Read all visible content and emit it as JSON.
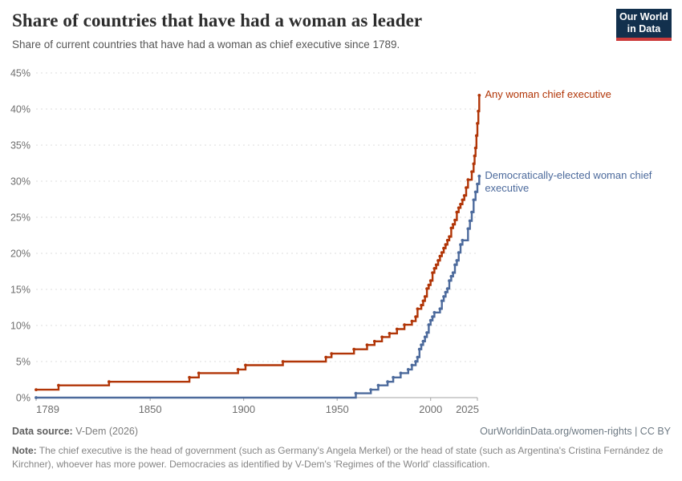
{
  "header": {
    "title": "Share of countries that have had a woman as leader",
    "subtitle": "Share of current countries that have had a woman as chief executive since 1789.",
    "logo": {
      "line1": "Our World",
      "line2": "in Data",
      "bg_color": "#12304d",
      "accent_color": "#cc3b3b"
    }
  },
  "chart_data": {
    "type": "line",
    "step": true,
    "title": "Share of countries that have had a woman as leader",
    "xlabel": "",
    "ylabel": "",
    "grid": "dashed-horizontal",
    "legend_position": "end-of-line-labels",
    "x_axis": {
      "min": 1789,
      "max": 2026,
      "ticks": [
        1789,
        1850,
        1900,
        1950,
        2000,
        2025
      ]
    },
    "y_axis": {
      "min": 0,
      "max": 45,
      "tick_step": 5,
      "ticks": [
        0,
        5,
        10,
        15,
        20,
        25,
        30,
        35,
        40,
        45
      ],
      "suffix": "%"
    },
    "series": [
      {
        "name": "Any woman chief executive",
        "color": "#b13507",
        "points": [
          [
            1789,
            1.1
          ],
          [
            1801,
            1.7
          ],
          [
            1828,
            2.2
          ],
          [
            1871,
            2.8
          ],
          [
            1876,
            3.4
          ],
          [
            1897,
            3.9
          ],
          [
            1901,
            4.5
          ],
          [
            1921,
            5.0
          ],
          [
            1944,
            5.6
          ],
          [
            1947,
            6.1
          ],
          [
            1959,
            6.7
          ],
          [
            1966,
            7.3
          ],
          [
            1970,
            7.8
          ],
          [
            1974,
            8.4
          ],
          [
            1978,
            8.9
          ],
          [
            1982,
            9.5
          ],
          [
            1986,
            10.1
          ],
          [
            1990,
            10.6
          ],
          [
            1992,
            11.2
          ],
          [
            1993,
            12.3
          ],
          [
            1995,
            12.8
          ],
          [
            1996,
            13.4
          ],
          [
            1997,
            14.0
          ],
          [
            1998,
            15.1
          ],
          [
            1999,
            15.6
          ],
          [
            2000,
            16.2
          ],
          [
            2001,
            17.3
          ],
          [
            2002,
            17.9
          ],
          [
            2003,
            18.4
          ],
          [
            2004,
            19.0
          ],
          [
            2005,
            19.6
          ],
          [
            2006,
            20.1
          ],
          [
            2007,
            20.7
          ],
          [
            2008,
            21.2
          ],
          [
            2009,
            21.8
          ],
          [
            2010,
            22.3
          ],
          [
            2011,
            23.5
          ],
          [
            2012,
            24.0
          ],
          [
            2013,
            24.6
          ],
          [
            2014,
            25.7
          ],
          [
            2015,
            26.3
          ],
          [
            2016,
            26.8
          ],
          [
            2017,
            27.4
          ],
          [
            2018,
            28.0
          ],
          [
            2019,
            29.1
          ],
          [
            2020,
            30.2
          ],
          [
            2022,
            31.3
          ],
          [
            2023,
            32.4
          ],
          [
            2023.5,
            33.5
          ],
          [
            2024,
            34.6
          ],
          [
            2024.5,
            36.3
          ],
          [
            2025,
            38.0
          ],
          [
            2025.5,
            39.7
          ],
          [
            2026,
            41.9
          ]
        ]
      },
      {
        "name": "Democratically-elected woman chief executive",
        "color": "#4c6a9c",
        "points": [
          [
            1789,
            0
          ],
          [
            1960,
            0.6
          ],
          [
            1968,
            1.1
          ],
          [
            1972,
            1.7
          ],
          [
            1977,
            2.2
          ],
          [
            1980,
            2.8
          ],
          [
            1984,
            3.4
          ],
          [
            1988,
            3.9
          ],
          [
            1990,
            4.5
          ],
          [
            1992,
            5.0
          ],
          [
            1993,
            5.6
          ],
          [
            1994,
            6.7
          ],
          [
            1995,
            7.3
          ],
          [
            1996,
            7.8
          ],
          [
            1997,
            8.4
          ],
          [
            1998,
            9.0
          ],
          [
            1999,
            10.1
          ],
          [
            2000,
            10.7
          ],
          [
            2001,
            11.2
          ],
          [
            2002,
            11.8
          ],
          [
            2005,
            12.3
          ],
          [
            2006,
            13.4
          ],
          [
            2007,
            14.0
          ],
          [
            2008,
            14.6
          ],
          [
            2009,
            15.1
          ],
          [
            2010,
            16.2
          ],
          [
            2011,
            16.8
          ],
          [
            2012,
            17.3
          ],
          [
            2013,
            18.4
          ],
          [
            2014,
            19.0
          ],
          [
            2015,
            20.1
          ],
          [
            2016,
            21.2
          ],
          [
            2017,
            21.8
          ],
          [
            2020,
            23.4
          ],
          [
            2021,
            24.5
          ],
          [
            2022,
            25.7
          ],
          [
            2023,
            27.4
          ],
          [
            2024,
            28.5
          ],
          [
            2025,
            29.6
          ],
          [
            2026,
            30.7
          ]
        ]
      }
    ]
  },
  "footer": {
    "source_label": "Data source:",
    "source_value": "V-Dem (2026)",
    "url_label": "OurWorldinData.org/women-rights",
    "separator": "|",
    "license": "CC BY",
    "note_label": "Note:",
    "note_text": "The chief executive is the head of government (such as Germany's Angela Merkel) or the head of state (such as Argentina's Cristina Fernández de Kirchner), whoever has more power. Democracies as identified by V-Dem's 'Regimes of the World' classification."
  },
  "style": {
    "grid_color": "#dcdcdc",
    "axis_color": "#a3a3a3",
    "tick_label_color": "#6e6e6e"
  }
}
